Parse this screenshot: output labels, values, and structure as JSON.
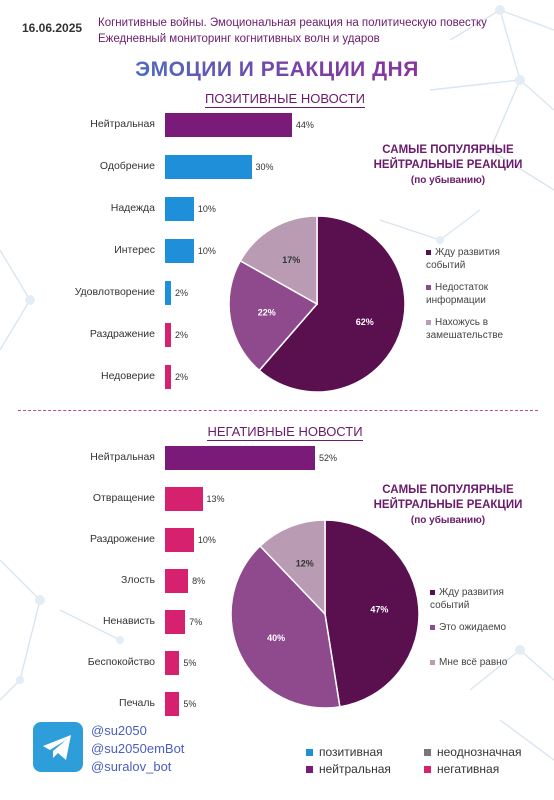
{
  "header": {
    "date": "16.06.2025",
    "line1": "Когнитивные войны. Эмоциональная реакция на политическую повестку",
    "line2": "Ежедневный мониторинг когнитивных волн и ударов"
  },
  "main_title": "ЭМОЦИИ И РЕАКЦИИ ДНЯ",
  "positive": {
    "section_title": "ПОЗИТИВНЫЕ НОВОСТИ",
    "pie_title": [
      "САМЫЕ ПОПУЛЯРНЫЕ",
      "НЕЙТРАЛЬНЫЕ РЕАКЦИИ"
    ],
    "pie_subtitle": "(по убыванию)"
  },
  "negative": {
    "section_title": "НЕГАТИВНЫЕ НОВОСТИ",
    "pie_title": [
      "САМЫЕ ПОПУЛЯРНЫЕ",
      "НЕЙТРАЛЬНЫЕ РЕАКЦИИ"
    ],
    "pie_subtitle": "(по убыванию)"
  },
  "colors": {
    "positive": "#1e8fd8",
    "neutral": "#7a1b7a",
    "ambiguous": "#777777",
    "negative": "#d6226e",
    "pie_dark": "#5a0f4e",
    "pie_mid": "#8e4a8c",
    "pie_light": "#b99bb4"
  },
  "chart_data": [
    {
      "type": "bar",
      "orientation": "horizontal",
      "categories": [
        "Нейтральная",
        "Одобрение",
        "Надежда",
        "Интерес",
        "Удовлотворение",
        "Раздражение",
        "Недоверие"
      ],
      "icons": [
        "",
        "heart-icon",
        "hands-icon",
        "question-icon",
        "smile-icon",
        "frown-icon",
        "neutral-face-icon"
      ],
      "values": [
        44,
        30,
        10,
        10,
        2,
        2,
        2
      ],
      "value_labels": [
        "44%",
        "30%",
        "10%",
        "10%",
        "2%",
        "2%",
        "2%"
      ],
      "bar_colors": [
        "#7a1b7a",
        "#1e8fd8",
        "#1e8fd8",
        "#1e8fd8",
        "#1e8fd8",
        "#d6226e",
        "#d6226e"
      ],
      "xlim": [
        0,
        52
      ]
    },
    {
      "type": "pie",
      "labels": [
        "Жду развития событий",
        "Недостаток информации",
        "Нахожусь в замешательстве"
      ],
      "values": [
        62,
        22,
        17
      ],
      "value_labels": [
        "62%",
        "22%",
        "17%"
      ],
      "colors": [
        "#5a0f4e",
        "#8e4a8c",
        "#b99bb4"
      ],
      "legend": "right"
    },
    {
      "type": "bar",
      "orientation": "horizontal",
      "categories": [
        "Нейтральная",
        "Отвращение",
        "Раздрожение",
        "Злость",
        "Ненависть",
        "Беспокойство",
        "Печаль"
      ],
      "icons": [
        "",
        "disgust-face-icon",
        "angry-face-icon",
        "mad-face-icon",
        "hate-face-icon",
        "worried-face-icon",
        "sad-face-icon"
      ],
      "values": [
        52,
        13,
        10,
        8,
        7,
        5,
        5
      ],
      "value_labels": [
        "52%",
        "13%",
        "10%",
        "8%",
        "7%",
        "5%",
        "5%"
      ],
      "bar_colors": [
        "#7a1b7a",
        "#d6226e",
        "#d6226e",
        "#d6226e",
        "#d6226e",
        "#d6226e",
        "#d6226e"
      ],
      "xlim": [
        0,
        52
      ]
    },
    {
      "type": "pie",
      "labels": [
        "Жду развития событий",
        "Это ожидаемо",
        "Мне всё равно"
      ],
      "values": [
        47,
        40,
        12
      ],
      "value_labels": [
        "47%",
        "40%",
        "12%"
      ],
      "colors": [
        "#5a0f4e",
        "#8e4a8c",
        "#b99bb4"
      ],
      "legend": "right"
    }
  ],
  "contacts": {
    "icon": "telegram-icon",
    "handles": [
      "@su2050",
      "@su2050emBot",
      "@suralov_bot"
    ]
  },
  "categories_legend": [
    {
      "label": "позитивная",
      "color": "#1e8fd8"
    },
    {
      "label": "неоднозначная",
      "color": "#777777"
    },
    {
      "label": "нейтральная",
      "color": "#7a1b7a"
    },
    {
      "label": "негативная",
      "color": "#d6226e"
    }
  ]
}
